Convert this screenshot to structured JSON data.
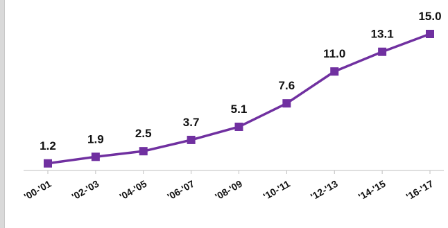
{
  "chart_data": {
    "type": "line",
    "categories": [
      "'00-'01",
      "'02-'03",
      "'04-'05",
      "'06-'07",
      "'08-'09",
      "'10-'11",
      "'12-'13",
      "'14-'15",
      "'16-'17"
    ],
    "series": [
      {
        "values": [
          1.2,
          1.9,
          2.5,
          3.7,
          5.1,
          7.6,
          11.0,
          13.1,
          15.0
        ]
      }
    ],
    "data_labels": [
      "1.2",
      "1.9",
      "2.5",
      "3.7",
      "5.1",
      "7.6",
      "11.0",
      "13.1",
      "15.0"
    ],
    "title": "",
    "xlabel": "",
    "ylabel": "",
    "ylim": [
      0,
      15
    ],
    "grid": false,
    "legend": "none",
    "colors": {
      "line": "#7030a0",
      "marker": "#7030a0",
      "axis": "#bfbfbf"
    }
  }
}
